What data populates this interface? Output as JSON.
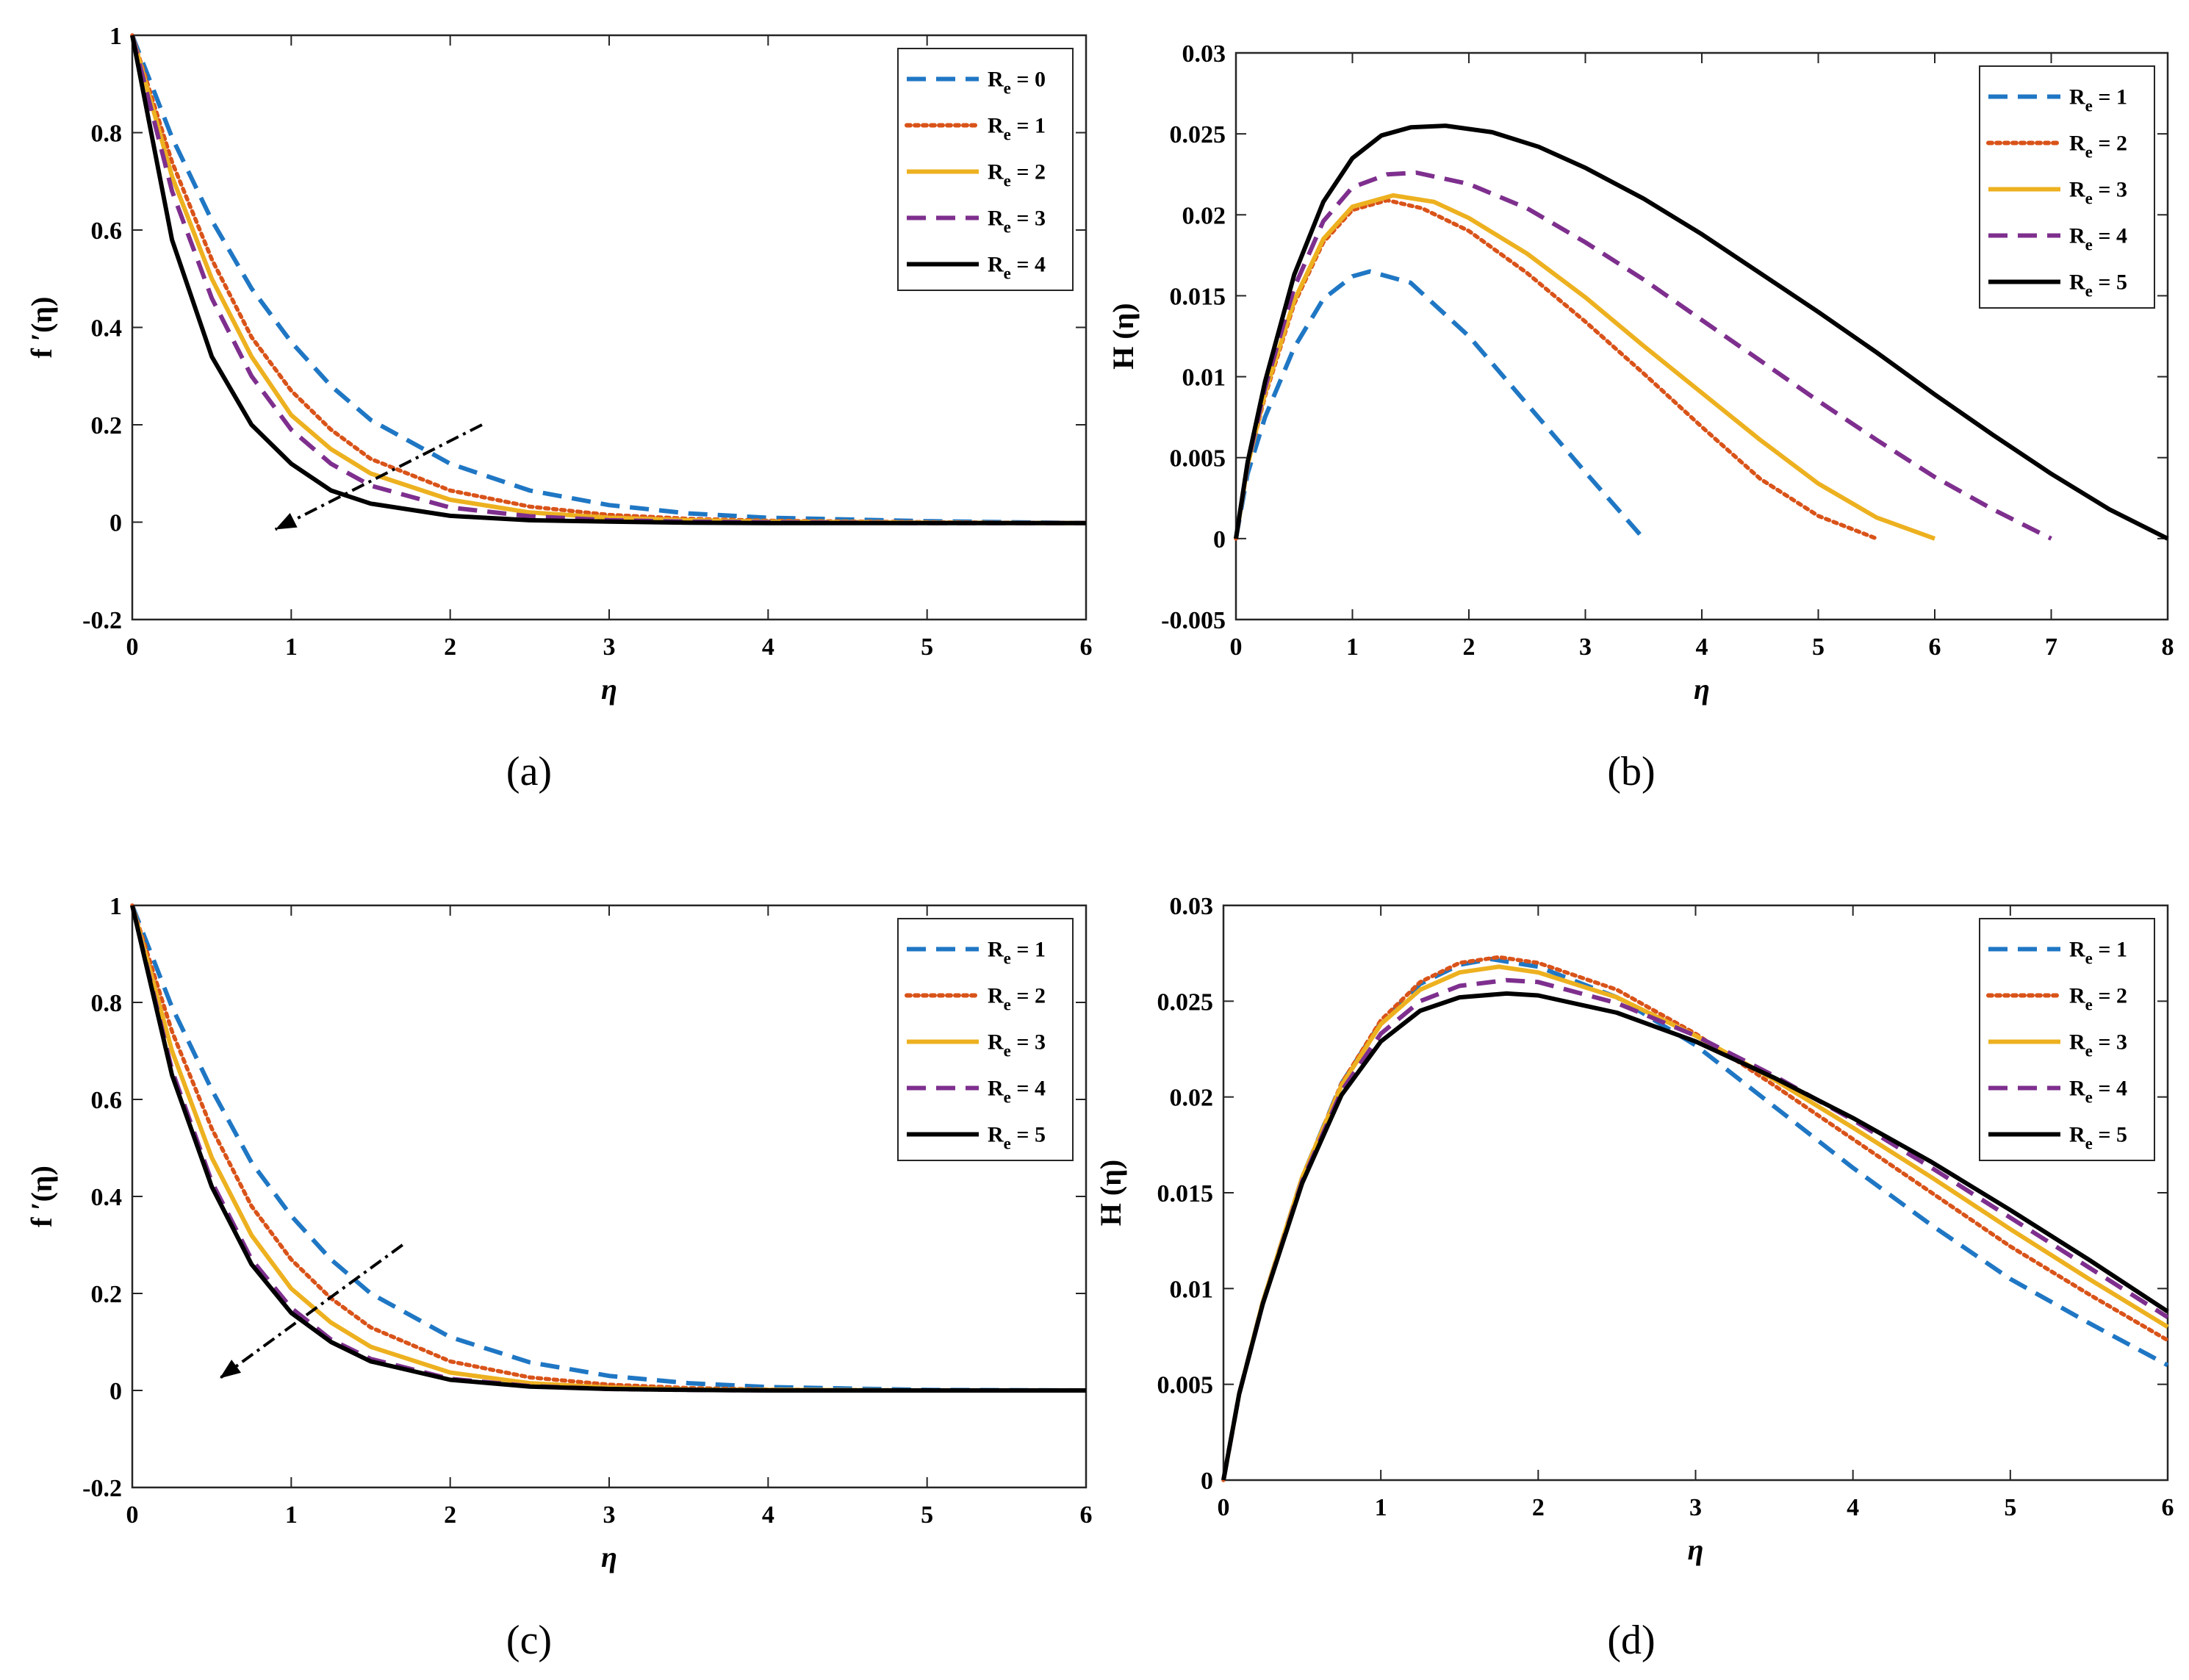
{
  "figure_labels": [
    "(a)",
    "(b)",
    "(c)",
    "(d)"
  ],
  "legend_prefix": "R",
  "legend_sub": "e",
  "colors": {
    "series": [
      "#1f77c4",
      "#d95319",
      "#edb120",
      "#7e2f8e",
      "#000000"
    ],
    "arrow": "#000000"
  },
  "chart_data": [
    {
      "id": "a",
      "type": "line",
      "caption": "(a)",
      "xlabel": "η",
      "ylabel": "f ′(η)",
      "xlim": [
        0,
        6
      ],
      "ylim": [
        -0.2,
        1
      ],
      "xticks": [
        0,
        1,
        2,
        3,
        4,
        5,
        6
      ],
      "yticks": [
        -0.2,
        0,
        0.2,
        0.4,
        0.6,
        0.8,
        1
      ],
      "ytick_labels": [
        "-0.2",
        "0",
        "0.2",
        "0.4",
        "0.6",
        "0.8",
        "1"
      ],
      "legend_position": "top-right",
      "arrow": {
        "from": [
          2.2,
          0.2
        ],
        "to": [
          0.9,
          -0.015
        ]
      },
      "series": [
        {
          "name": "Re = 0",
          "legend_value": "0",
          "style": "dashed",
          "color": "#1f77c4",
          "x": [
            0,
            0.25,
            0.5,
            0.75,
            1,
            1.25,
            1.5,
            2,
            2.5,
            3,
            3.5,
            4,
            5,
            6
          ],
          "y": [
            1,
            0.79,
            0.62,
            0.48,
            0.37,
            0.28,
            0.21,
            0.12,
            0.065,
            0.035,
            0.018,
            0.009,
            0.002,
            -0.002
          ]
        },
        {
          "name": "Re = 1",
          "legend_value": "1",
          "style": "dotted",
          "color": "#d95319",
          "x": [
            0,
            0.25,
            0.5,
            0.75,
            1,
            1.25,
            1.5,
            2,
            2.5,
            3,
            3.5,
            4,
            5,
            6
          ],
          "y": [
            1,
            0.74,
            0.54,
            0.38,
            0.27,
            0.19,
            0.13,
            0.065,
            0.032,
            0.015,
            0.007,
            0.003,
            0,
            -0.002
          ]
        },
        {
          "name": "Re = 2",
          "legend_value": "2",
          "style": "solid",
          "color": "#edb120",
          "x": [
            0,
            0.25,
            0.5,
            0.75,
            1,
            1.25,
            1.5,
            2,
            2.5,
            3,
            3.5,
            4,
            5,
            6
          ],
          "y": [
            1,
            0.71,
            0.5,
            0.34,
            0.22,
            0.15,
            0.1,
            0.046,
            0.02,
            0.009,
            0.004,
            0.001,
            -0.001,
            -0.002
          ]
        },
        {
          "name": "Re = 3",
          "legend_value": "3",
          "style": "dashed",
          "color": "#7e2f8e",
          "x": [
            0,
            0.25,
            0.5,
            0.75,
            1,
            1.25,
            1.5,
            2,
            2.5,
            3,
            3.5,
            4,
            5,
            6
          ],
          "y": [
            1,
            0.68,
            0.46,
            0.3,
            0.19,
            0.12,
            0.075,
            0.03,
            0.012,
            0.004,
            0.001,
            0,
            -0.002,
            -0.002
          ]
        },
        {
          "name": "Re = 4",
          "legend_value": "4",
          "style": "solid",
          "color": "#000000",
          "x": [
            0,
            0.25,
            0.5,
            0.75,
            1,
            1.25,
            1.5,
            2,
            2.5,
            3,
            3.5,
            4,
            5,
            6
          ],
          "y": [
            1,
            0.58,
            0.34,
            0.2,
            0.12,
            0.065,
            0.038,
            0.013,
            0.004,
            0.001,
            -0.001,
            -0.002,
            -0.002,
            -0.002
          ]
        }
      ]
    },
    {
      "id": "b",
      "type": "line",
      "caption": "(b)",
      "xlabel": "η",
      "ylabel": "H (η)",
      "xlim": [
        0,
        8
      ],
      "ylim": [
        -0.005,
        0.03
      ],
      "xticks": [
        0,
        1,
        2,
        3,
        4,
        5,
        6,
        7,
        8
      ],
      "yticks": [
        -0.005,
        0,
        0.005,
        0.01,
        0.015,
        0.02,
        0.025,
        0.03
      ],
      "ytick_labels": [
        "-0.005",
        "0",
        "0.005",
        "0.01",
        "0.015",
        "0.02",
        "0.025",
        "0.03"
      ],
      "legend_position": "top-right",
      "series": [
        {
          "name": "Re = 1",
          "legend_value": "1",
          "style": "dashed",
          "color": "#1f77c4",
          "x": [
            0,
            0.1,
            0.25,
            0.5,
            0.75,
            1,
            1.15,
            1.5,
            2,
            2.5,
            3,
            3.5
          ],
          "y": [
            0,
            0.004,
            0.0075,
            0.0118,
            0.0148,
            0.0162,
            0.0165,
            0.0158,
            0.0125,
            0.0083,
            0.0041,
            0
          ]
        },
        {
          "name": "Re = 2",
          "legend_value": "2",
          "style": "dotted",
          "color": "#d95319",
          "x": [
            0,
            0.1,
            0.25,
            0.5,
            0.75,
            1,
            1.3,
            1.6,
            2,
            2.5,
            3,
            3.5,
            4,
            4.5,
            5,
            5.5
          ],
          "y": [
            0,
            0.0045,
            0.0088,
            0.0145,
            0.0183,
            0.0203,
            0.0209,
            0.0204,
            0.019,
            0.0164,
            0.0134,
            0.0102,
            0.0069,
            0.0037,
            0.0014,
            0
          ]
        },
        {
          "name": "Re = 3",
          "legend_value": "3",
          "style": "solid",
          "color": "#edb120",
          "x": [
            0,
            0.1,
            0.25,
            0.5,
            0.75,
            1,
            1.35,
            1.7,
            2,
            2.5,
            3,
            3.5,
            4,
            4.5,
            5,
            5.5,
            6
          ],
          "y": [
            0,
            0.0045,
            0.009,
            0.0147,
            0.0185,
            0.0205,
            0.0212,
            0.0208,
            0.0198,
            0.0176,
            0.0149,
            0.0119,
            0.009,
            0.0061,
            0.0034,
            0.0013,
            0
          ]
        },
        {
          "name": "Re = 4",
          "legend_value": "4",
          "style": "dashed",
          "color": "#7e2f8e",
          "x": [
            0,
            0.1,
            0.25,
            0.5,
            0.75,
            1,
            1.3,
            1.55,
            2,
            2.5,
            3,
            3.5,
            4,
            4.5,
            5,
            5.5,
            6,
            6.5,
            7
          ],
          "y": [
            0,
            0.0046,
            0.0093,
            0.0155,
            0.0196,
            0.0217,
            0.0225,
            0.0226,
            0.0219,
            0.0204,
            0.0183,
            0.016,
            0.0135,
            0.011,
            0.0085,
            0.0061,
            0.0038,
            0.0018,
            0
          ]
        },
        {
          "name": "Re = 5",
          "legend_value": "5",
          "style": "solid",
          "color": "#000000",
          "x": [
            0,
            0.1,
            0.25,
            0.5,
            0.75,
            1,
            1.25,
            1.5,
            1.8,
            2.2,
            2.6,
            3,
            3.5,
            4,
            4.5,
            5,
            5.5,
            6,
            6.5,
            7,
            7.5,
            8
          ],
          "y": [
            0,
            0.0047,
            0.0097,
            0.0163,
            0.0208,
            0.0235,
            0.0249,
            0.0254,
            0.0255,
            0.0251,
            0.0242,
            0.0229,
            0.021,
            0.0188,
            0.0164,
            0.014,
            0.0115,
            0.0089,
            0.0064,
            0.004,
            0.0018,
            0
          ]
        }
      ]
    },
    {
      "id": "c",
      "type": "line",
      "caption": "(c)",
      "xlabel": "η",
      "ylabel": "f ′(η)",
      "xlim": [
        0,
        6
      ],
      "ylim": [
        -0.2,
        1
      ],
      "xticks": [
        0,
        1,
        2,
        3,
        4,
        5,
        6
      ],
      "yticks": [
        -0.2,
        0,
        0.2,
        0.4,
        0.6,
        0.8,
        1
      ],
      "ytick_labels": [
        "-0.2",
        "0",
        "0.2",
        "0.4",
        "0.6",
        "0.8",
        "1"
      ],
      "legend_position": "top-right",
      "arrow": {
        "from": [
          1.7,
          0.3
        ],
        "to": [
          0.55,
          0.025
        ]
      },
      "series": [
        {
          "name": "Re = 1",
          "legend_value": "1",
          "style": "dashed",
          "color": "#1f77c4",
          "x": [
            0,
            0.25,
            0.5,
            0.75,
            1,
            1.25,
            1.5,
            2,
            2.5,
            3,
            3.5,
            4,
            5,
            6
          ],
          "y": [
            1,
            0.79,
            0.62,
            0.47,
            0.36,
            0.27,
            0.2,
            0.11,
            0.058,
            0.03,
            0.015,
            0.007,
            0.001,
            0
          ]
        },
        {
          "name": "Re = 2",
          "legend_value": "2",
          "style": "dotted",
          "color": "#d95319",
          "x": [
            0,
            0.25,
            0.5,
            0.75,
            1,
            1.25,
            1.5,
            2,
            2.5,
            3,
            3.5,
            4,
            5,
            6
          ],
          "y": [
            1,
            0.74,
            0.54,
            0.38,
            0.27,
            0.19,
            0.13,
            0.06,
            0.027,
            0.012,
            0.005,
            0.002,
            0,
            0
          ]
        },
        {
          "name": "Re = 3",
          "legend_value": "3",
          "style": "solid",
          "color": "#edb120",
          "x": [
            0,
            0.25,
            0.5,
            0.75,
            1,
            1.25,
            1.5,
            2,
            2.5,
            3,
            3.5,
            4,
            5,
            6
          ],
          "y": [
            1,
            0.7,
            0.48,
            0.32,
            0.21,
            0.14,
            0.09,
            0.037,
            0.015,
            0.006,
            0.002,
            0.001,
            0,
            0
          ]
        },
        {
          "name": "Re = 4",
          "legend_value": "4",
          "style": "dashed",
          "color": "#7e2f8e",
          "x": [
            0,
            0.25,
            0.5,
            0.75,
            1,
            1.25,
            1.5,
            2,
            2.5,
            3,
            3.5,
            4,
            5,
            6
          ],
          "y": [
            1,
            0.66,
            0.43,
            0.27,
            0.17,
            0.105,
            0.065,
            0.024,
            0.009,
            0.003,
            0.001,
            0,
            0,
            0
          ]
        },
        {
          "name": "Re = 5",
          "legend_value": "5",
          "style": "solid",
          "color": "#000000",
          "x": [
            0,
            0.25,
            0.5,
            0.75,
            1,
            1.25,
            1.5,
            2,
            2.5,
            3,
            3.5,
            4,
            5,
            6
          ],
          "y": [
            1,
            0.65,
            0.42,
            0.26,
            0.16,
            0.1,
            0.06,
            0.022,
            0.008,
            0.003,
            0.001,
            0,
            0,
            0
          ]
        }
      ]
    },
    {
      "id": "d",
      "type": "line",
      "caption": "(d)",
      "xlabel": "η",
      "ylabel": "H (η)",
      "xlim": [
        0,
        6
      ],
      "ylim": [
        0,
        0.03
      ],
      "xticks": [
        0,
        1,
        2,
        3,
        4,
        5,
        6
      ],
      "yticks": [
        0,
        0.005,
        0.01,
        0.015,
        0.02,
        0.025,
        0.03
      ],
      "ytick_labels": [
        "0",
        "0.005",
        "0.01",
        "0.015",
        "0.02",
        "0.025",
        "0.03"
      ],
      "legend_position": "top-right",
      "series": [
        {
          "name": "Re = 1",
          "legend_value": "1",
          "style": "dashed",
          "color": "#1f77c4",
          "x": [
            0,
            0.1,
            0.25,
            0.5,
            0.75,
            1,
            1.25,
            1.5,
            1.7,
            2,
            2.5,
            3,
            3.5,
            4,
            4.5,
            5,
            5.5,
            6
          ],
          "y": [
            0,
            0.0045,
            0.0093,
            0.0158,
            0.0207,
            0.0239,
            0.0259,
            0.0269,
            0.0272,
            0.0268,
            0.0252,
            0.0227,
            0.0195,
            0.0163,
            0.0133,
            0.0105,
            0.0082,
            0.006
          ]
        },
        {
          "name": "Re = 2",
          "legend_value": "2",
          "style": "dotted",
          "color": "#d95319",
          "x": [
            0,
            0.1,
            0.25,
            0.5,
            0.75,
            1,
            1.25,
            1.5,
            1.75,
            2,
            2.5,
            3,
            3.5,
            4,
            4.5,
            5,
            5.5,
            6
          ],
          "y": [
            0,
            0.0045,
            0.0093,
            0.0158,
            0.0207,
            0.024,
            0.026,
            0.027,
            0.0273,
            0.027,
            0.0256,
            0.0233,
            0.0206,
            0.0178,
            0.015,
            0.0122,
            0.0097,
            0.0073
          ]
        },
        {
          "name": "Re = 3",
          "legend_value": "3",
          "style": "solid",
          "color": "#edb120",
          "x": [
            0,
            0.1,
            0.25,
            0.5,
            0.75,
            1,
            1.25,
            1.5,
            1.75,
            2,
            2.5,
            3,
            3.5,
            4,
            4.5,
            5,
            5.5,
            6
          ],
          "y": [
            0,
            0.0045,
            0.0093,
            0.0158,
            0.0206,
            0.0238,
            0.0256,
            0.0265,
            0.0268,
            0.0265,
            0.0252,
            0.0232,
            0.0209,
            0.0184,
            0.0158,
            0.0131,
            0.0105,
            0.008
          ]
        },
        {
          "name": "Re = 4",
          "legend_value": "4",
          "style": "dashed",
          "color": "#7e2f8e",
          "x": [
            0,
            0.1,
            0.25,
            0.5,
            0.75,
            1,
            1.25,
            1.5,
            1.8,
            2,
            2.5,
            3,
            3.5,
            4,
            4.5,
            5,
            5.5,
            6
          ],
          "y": [
            0,
            0.0045,
            0.0092,
            0.0156,
            0.0203,
            0.0233,
            0.025,
            0.0258,
            0.0261,
            0.026,
            0.0249,
            0.0232,
            0.0211,
            0.0188,
            0.0163,
            0.0137,
            0.0111,
            0.0085
          ]
        },
        {
          "name": "Re = 5",
          "legend_value": "5",
          "style": "solid",
          "color": "#000000",
          "x": [
            0,
            0.1,
            0.25,
            0.5,
            0.75,
            1,
            1.25,
            1.5,
            1.8,
            2,
            2.5,
            3,
            3.5,
            4,
            4.5,
            5,
            5.5,
            6
          ],
          "y": [
            0,
            0.0045,
            0.0092,
            0.0155,
            0.0201,
            0.0229,
            0.0245,
            0.0252,
            0.0254,
            0.0253,
            0.0244,
            0.0229,
            0.021,
            0.0189,
            0.0166,
            0.0141,
            0.0115,
            0.0088
          ]
        }
      ]
    }
  ]
}
